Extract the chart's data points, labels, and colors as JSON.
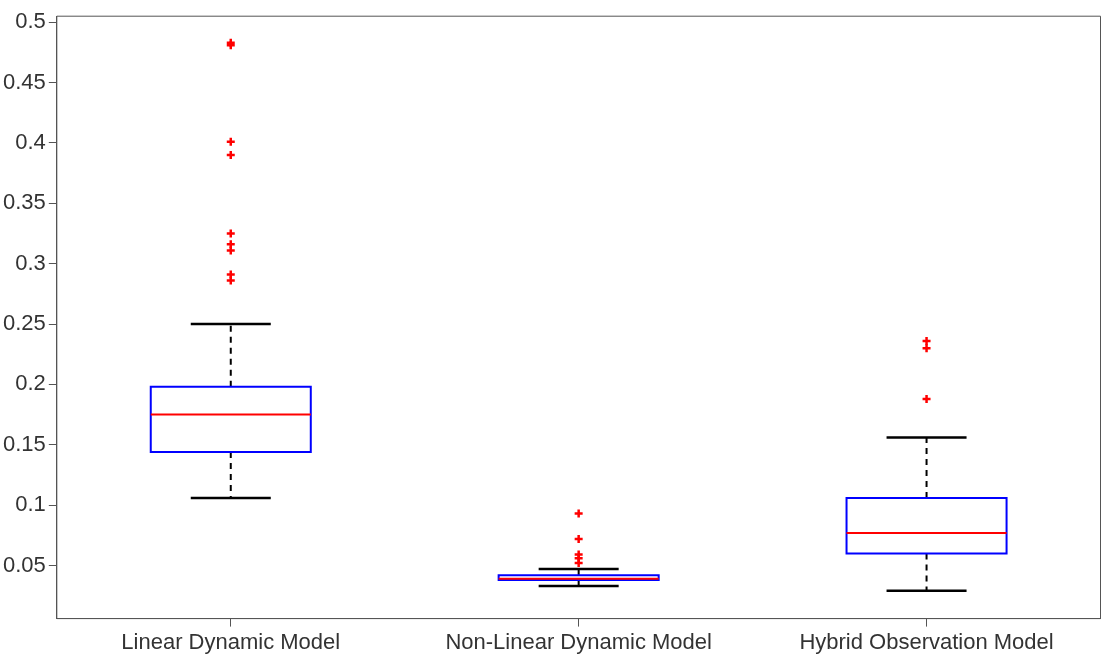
{
  "chart_data": {
    "type": "box",
    "categories": [
      "Linear Dynamic Model",
      "Non-Linear Dynamic Model",
      "Hybrid Observation Model"
    ],
    "series": [
      {
        "color": "#0000ff",
        "boxes": [
          {
            "low": 0.106,
            "q1": 0.144,
            "median": 0.175,
            "q3": 0.198,
            "high": 0.25,
            "outliers": [
              0.483,
              0.481,
              0.401,
              0.39,
              0.325,
              0.316,
              0.311,
              0.291,
              0.286
            ]
          },
          {
            "low": 0.033,
            "q1": 0.038,
            "median": 0.039,
            "q3": 0.042,
            "high": 0.047,
            "outliers": [
              0.093,
              0.072,
              0.059,
              0.056,
              0.052
            ]
          },
          {
            "low": 0.029,
            "q1": 0.06,
            "median": 0.077,
            "q3": 0.106,
            "high": 0.156,
            "outliers": [
              0.236,
              0.23,
              0.188
            ]
          }
        ]
      }
    ],
    "ylim": [
      0.006,
      0.505
    ],
    "yticks": [
      0.05,
      0.1,
      0.15,
      0.2,
      0.25,
      0.3,
      0.35,
      0.4,
      0.45,
      0.5
    ],
    "grid": false,
    "legend": false
  }
}
